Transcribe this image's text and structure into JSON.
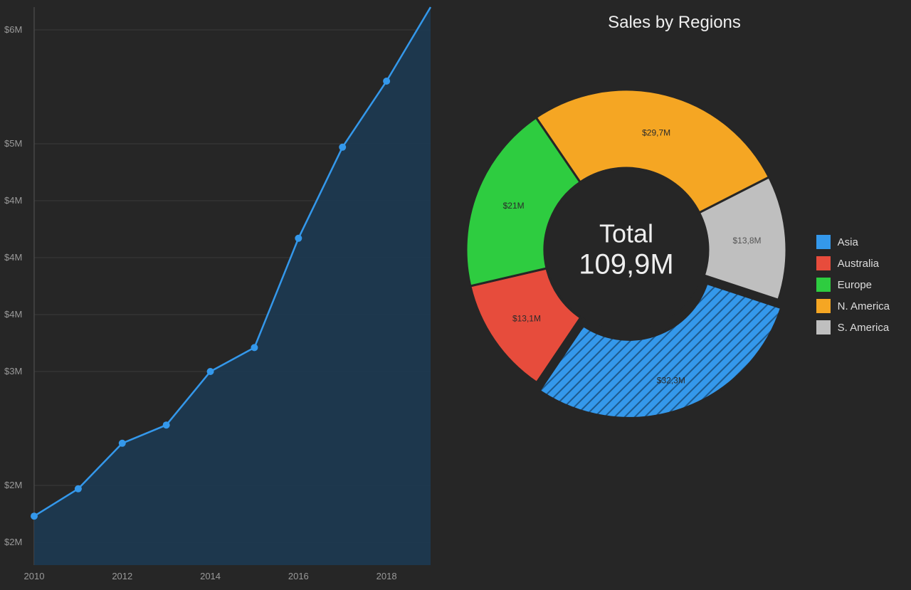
{
  "background_color": "#262626",
  "line_chart": {
    "type": "area",
    "x_labels": [
      "2010",
      "",
      "2012",
      "",
      "2014",
      "",
      "2016",
      "",
      "2018",
      ""
    ],
    "x_values": [
      2010,
      2011,
      2012,
      2013,
      2014,
      2015,
      2016,
      2017,
      2018,
      2019
    ],
    "y_labels": [
      "$2M",
      "$2M",
      "$3M",
      "$4M",
      "$4M",
      "$4M",
      "$5M",
      "$6M"
    ],
    "y_tick_values": [
      1.5,
      2.0,
      3.0,
      3.5,
      4.0,
      4.5,
      5.0,
      6.0
    ],
    "values": [
      1.73,
      1.97,
      2.37,
      2.53,
      3.0,
      3.21,
      4.17,
      4.97,
      5.55,
      6.6
    ],
    "line_color": "#3498eb",
    "marker_color": "#3498eb",
    "area_fill": "#1d3a52",
    "grid_color": "#3a3a3a",
    "axis_color": "#555",
    "ylim": [
      1.3,
      6.2
    ],
    "xlim": [
      2010,
      2019
    ]
  },
  "donut": {
    "title": "Sales by Regions",
    "center_label": "Total",
    "center_value": "109,9M",
    "hole_color": "#262626",
    "stroke_color": "#262626",
    "slices": [
      {
        "name": "Asia",
        "value": 32.3,
        "label": "$32,3M",
        "color": "#3498eb",
        "hatched": true
      },
      {
        "name": "Australia",
        "value": 13.1,
        "label": "$13,1M",
        "color": "#e74c3c",
        "hatched": false
      },
      {
        "name": "Europe",
        "value": 21.0,
        "label": "$21M",
        "color": "#2ecc40",
        "hatched": false
      },
      {
        "name": "N. America",
        "value": 29.7,
        "label": "$29,7M",
        "color": "#f5a623",
        "hatched": false
      },
      {
        "name": "S. America",
        "value": 13.8,
        "label": "$13,8M",
        "color": "#bfbfbf",
        "hatched": false
      }
    ],
    "legend": [
      {
        "label": "Asia",
        "color": "#3498eb"
      },
      {
        "label": "Australia",
        "color": "#e74c3c"
      },
      {
        "label": "Europe",
        "color": "#2ecc40"
      },
      {
        "label": "N. America",
        "color": "#f5a623"
      },
      {
        "label": "S. America",
        "color": "#bfbfbf"
      }
    ]
  }
}
